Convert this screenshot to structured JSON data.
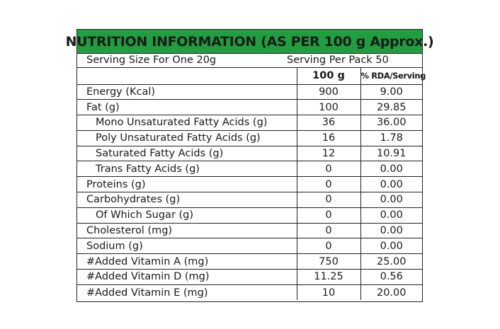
{
  "title": "NUTRITION INFORMATION (AS PER 100 g Approx.)",
  "serving_size": "Serving Size For One 20g",
  "serving_per_pack": "Serving Per Pack 50",
  "columns": {
    "value": "100 g",
    "rda": "% RDA/Serving"
  },
  "rows": [
    {
      "name": "Energy (Kcal)",
      "value": "900",
      "rda": "9.00"
    },
    {
      "name": "Fat (g)",
      "value": "100",
      "rda": "29.85"
    },
    {
      "name": "Mono Unsaturated Fatty Acids (g)",
      "value": "36",
      "rda": "36.00"
    },
    {
      "name": "Poly Unsaturated Fatty Acids (g)",
      "value": "16",
      "rda": "1.78"
    },
    {
      "name": "Saturated Fatty Acids (g)",
      "value": "12",
      "rda": "10.91"
    },
    {
      "name": "Trans Fatty Acids (g)",
      "value": "0",
      "rda": "0.00"
    },
    {
      "name": "Proteins (g)",
      "value": "0",
      "rda": "0.00"
    },
    {
      "name": "Carbohydrates (g)",
      "value": "0",
      "rda": "0.00"
    },
    {
      "name": "Of Which Sugar (g)",
      "value": "0",
      "rda": "0.00"
    },
    {
      "name": "Cholesterol (mg)",
      "value": "0",
      "rda": "0.00"
    },
    {
      "name": "Sodium (g)",
      "value": "0",
      "rda": "0.00"
    },
    {
      "name": "#Added Vitamin A (mg)",
      "value": "750",
      "rda": "25.00"
    },
    {
      "name": "#Added Vitamin D (mg)",
      "value": "11.25",
      "rda": "0.56"
    },
    {
      "name": "#Added Vitamin E (mg)",
      "value": "10",
      "rda": "20.00"
    }
  ],
  "colors": {
    "title_background": "#1f9f3f",
    "border": "#222222",
    "text": "#1a1a1a"
  }
}
